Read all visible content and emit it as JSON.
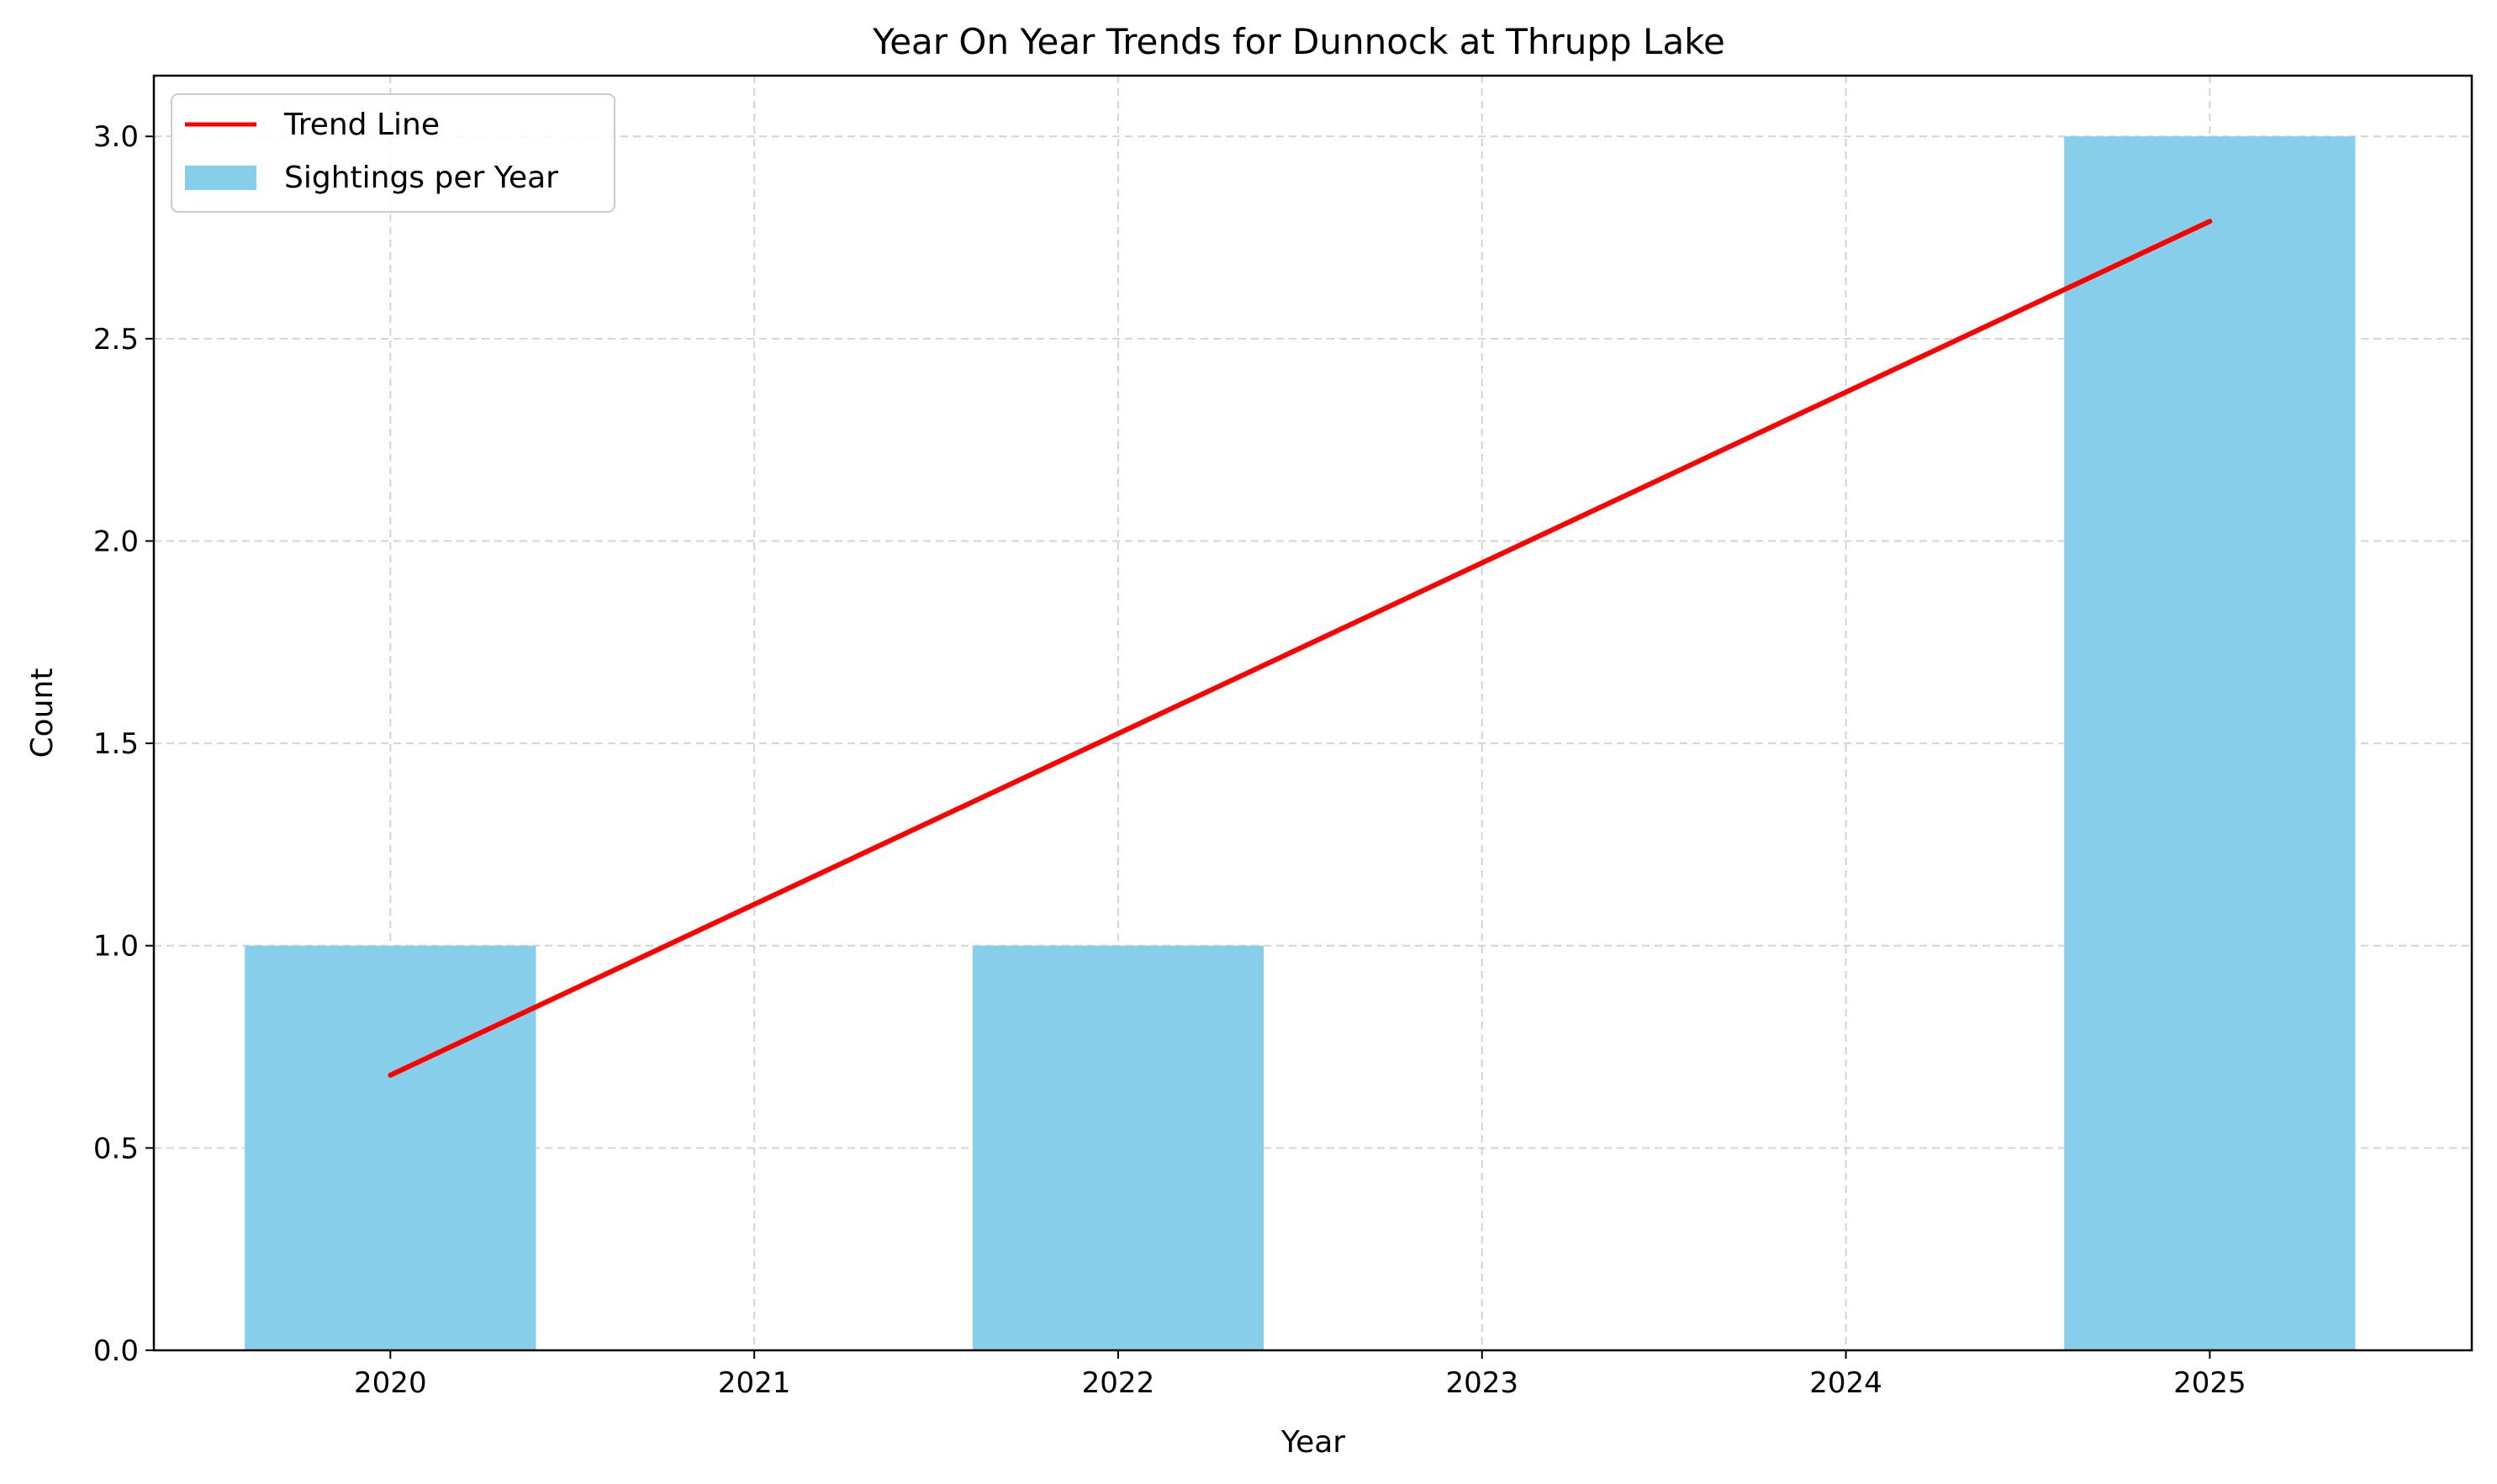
{
  "chart_data": {
    "type": "bar",
    "title": "Year On Year Trends for Dunnock at Thrupp Lake",
    "xlabel": "Year",
    "ylabel": "Count",
    "categories": [
      "2020",
      "2021",
      "2022",
      "2023",
      "2024",
      "2025"
    ],
    "series": [
      {
        "name": "Sightings per Year",
        "type": "bar",
        "color": "#87CEEB",
        "x": [
          2020,
          2022,
          2025
        ],
        "values": [
          1,
          1,
          3
        ]
      },
      {
        "name": "Trend Line",
        "type": "line",
        "color": "#ff0000",
        "x": [
          2020,
          2025
        ],
        "values": [
          0.68,
          2.79
        ]
      }
    ],
    "bar_width": 0.8,
    "xlim": [
      2019.35,
      2025.72
    ],
    "ylim": [
      0,
      3.15
    ],
    "yticks": [
      0.0,
      0.5,
      1.0,
      1.5,
      2.0,
      2.5,
      3.0
    ],
    "ytick_labels": [
      "0.0",
      "0.5",
      "1.0",
      "1.5",
      "2.0",
      "2.5",
      "3.0"
    ],
    "xticks": [
      2020,
      2021,
      2022,
      2023,
      2024,
      2025
    ],
    "xtick_labels": [
      "2020",
      "2021",
      "2022",
      "2023",
      "2024",
      "2025"
    ],
    "grid": true,
    "legend": {
      "position": "upper-left",
      "entries": [
        "Trend Line",
        "Sightings per Year"
      ]
    }
  }
}
